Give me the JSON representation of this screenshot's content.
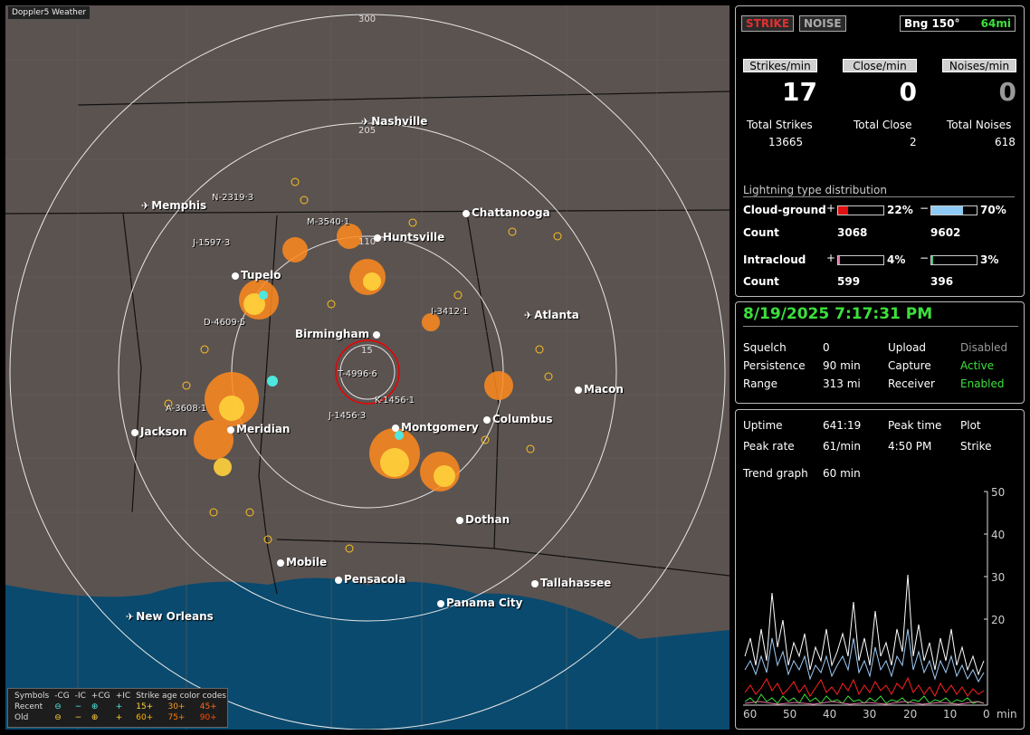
{
  "map": {
    "title": "Doppler5 Weather",
    "ring_labels": [
      "300",
      "205",
      "110",
      "15"
    ],
    "cities": [
      {
        "name": "Nashville",
        "type": "airport"
      },
      {
        "name": "Memphis",
        "type": "airport"
      },
      {
        "name": "Chattanooga",
        "type": "city"
      },
      {
        "name": "Huntsville",
        "type": "city"
      },
      {
        "name": "Tupelo",
        "type": "city"
      },
      {
        "name": "Atlanta",
        "type": "airport"
      },
      {
        "name": "Birmingham",
        "type": "city"
      },
      {
        "name": "Macon",
        "type": "city"
      },
      {
        "name": "Jackson",
        "type": "city"
      },
      {
        "name": "Meridian",
        "type": "city"
      },
      {
        "name": "Montgomery",
        "type": "city"
      },
      {
        "name": "Columbus",
        "type": "city"
      },
      {
        "name": "Dothan",
        "type": "city"
      },
      {
        "name": "Mobile",
        "type": "city"
      },
      {
        "name": "Pensacola",
        "type": "city"
      },
      {
        "name": "Tallahassee",
        "type": "city"
      },
      {
        "name": "Panama City",
        "type": "city"
      },
      {
        "name": "New Orleans",
        "type": "airport"
      }
    ],
    "storm_labels": [
      "N-2319·3",
      "M-3540·1",
      "J-1597·3",
      "I-3412·1",
      "D-4609·5",
      "T-4996·6",
      "K-1456·1",
      "A-3608·1",
      "J-1456·3"
    ],
    "legend": {
      "header": [
        "Symbols",
        "-CG",
        "-IC",
        "+CG",
        "+IC",
        "Strike age color codes"
      ],
      "recent_label": "Recent",
      "old_label": "Old",
      "recent_ages": [
        "15+",
        "30+",
        "45+"
      ],
      "old_ages": [
        "60+",
        "75+",
        "90+"
      ],
      "age_colors": [
        "#ffd23c",
        "#ff9a1e",
        "#ff6a1e",
        "#ffb400",
        "#ff7a00",
        "#ff4a00"
      ]
    }
  },
  "status": {
    "strike_label": "STRIKE",
    "noise_label": "NOISE",
    "bearing": "Bng 150°",
    "distance": "64mi",
    "headers": [
      "Strikes/min",
      "Close/min",
      "Noises/min"
    ],
    "rates": [
      "17",
      "0",
      "0"
    ],
    "total_labels": [
      "Total Strikes",
      "Total Close",
      "Total Noises"
    ],
    "totals": [
      "13665",
      "2",
      "618"
    ],
    "distribution_title": "Lightning type distribution",
    "cg_label": "Cloud-ground",
    "ic_label": "Intracloud",
    "count_label": "Count",
    "cg_pos_pct": "22%",
    "cg_neg_pct": "70%",
    "cg_pos_count": "3068",
    "cg_neg_count": "9602",
    "ic_pos_pct": "4%",
    "ic_neg_pct": "3%",
    "ic_pos_count": "599",
    "ic_neg_count": "396",
    "cg_pos_fraction": 0.22,
    "cg_neg_fraction": 0.7,
    "ic_pos_fraction": 0.04,
    "ic_neg_fraction": 0.03
  },
  "settings": {
    "datetime": "8/19/2025 7:17:31 PM",
    "rows": [
      [
        "Squelch",
        "0",
        "Upload",
        "Disabled"
      ],
      [
        "Persistence",
        "90 min",
        "Capture",
        "Active"
      ],
      [
        "Range",
        "313 mi",
        "Receiver",
        "Enabled"
      ]
    ]
  },
  "trend": {
    "uptime_label": "Uptime",
    "uptime": "641:19",
    "peak_time_label": "Peak time",
    "peak_time": "4:50 PM",
    "plot_label": "Plot",
    "plot": "Strike",
    "peak_rate_label": "Peak rate",
    "peak_rate": "61/min",
    "trend_label": "Trend graph",
    "trend_value": "60 min",
    "y_ticks": [
      "50",
      "40",
      "30",
      "20"
    ],
    "x_ticks": [
      "60",
      "50",
      "40",
      "30",
      "20",
      "10",
      "0"
    ],
    "x_unit": "min"
  }
}
